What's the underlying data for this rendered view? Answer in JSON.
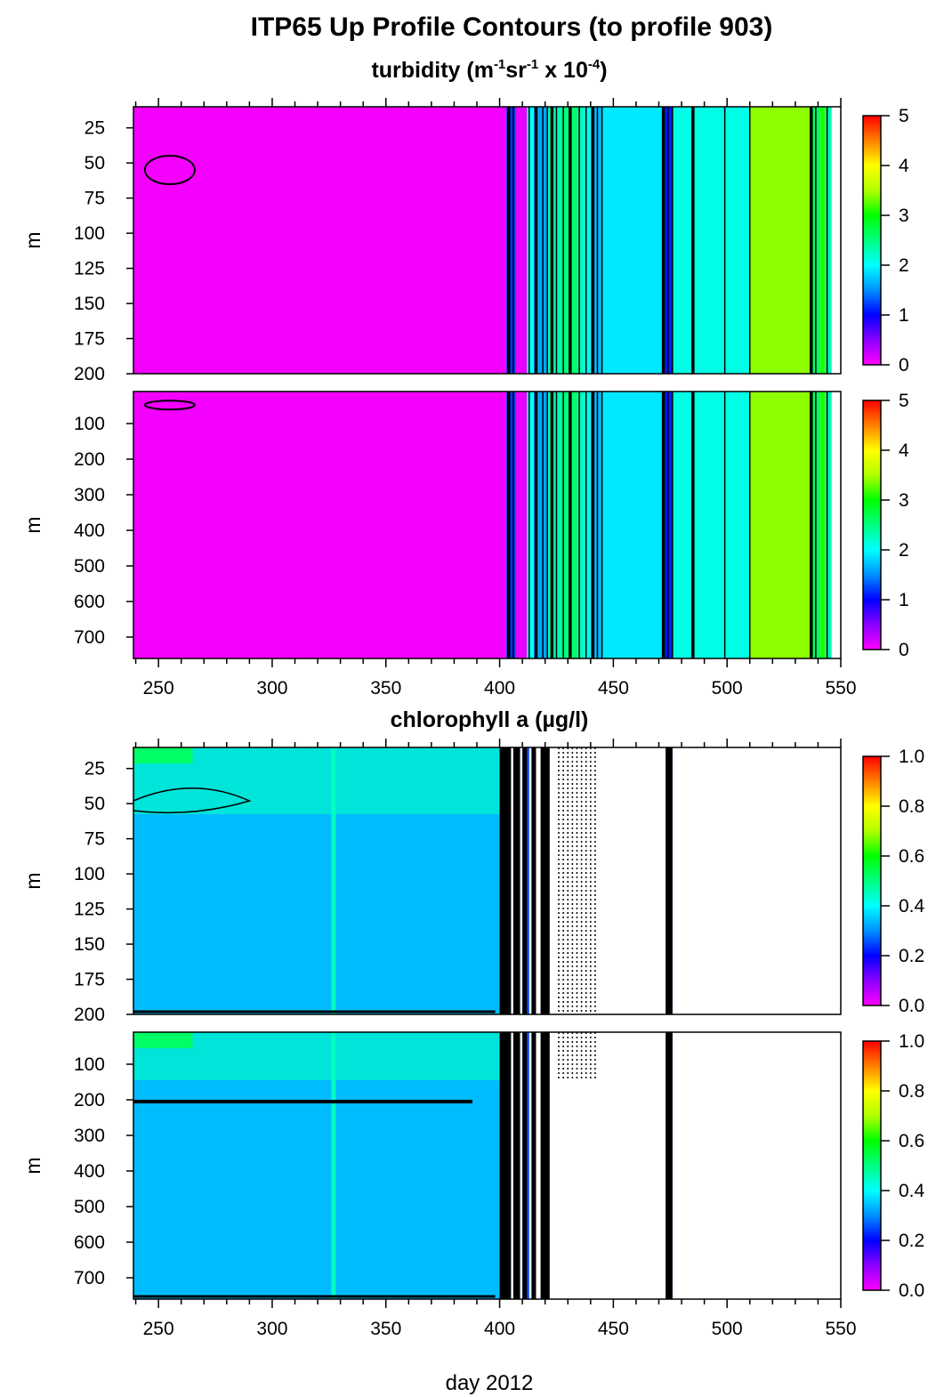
{
  "title": "ITP65 Up Profile Contours (to profile 903)",
  "chart_data": [
    {
      "type": "heatmap",
      "variable": "turbidity",
      "title_parts": {
        "base": "turbidity (m",
        "sup1": "-1",
        "mid1": "sr",
        "sup2": "-1",
        "mid2": " x 10",
        "sup3": "-4",
        "end": ")"
      },
      "xlabel": "",
      "x_ticks": [
        250,
        300,
        350,
        400,
        450,
        500,
        550
      ],
      "xlim": [
        239,
        550
      ],
      "colorbar": {
        "range": [
          0,
          5
        ],
        "ticks": [
          "0",
          "1",
          "2",
          "3",
          "4",
          "5"
        ]
      },
      "panels": [
        {
          "ylabel": "m",
          "ylim": [
            10,
            200
          ],
          "y_ticks": [
            25,
            50,
            75,
            100,
            125,
            150,
            175,
            200
          ]
        },
        {
          "ylabel": "m",
          "ylim": [
            10,
            760
          ],
          "y_ticks": [
            100,
            200,
            300,
            400,
            500,
            600,
            700
          ]
        }
      ],
      "data_end_day": 546,
      "bands": [
        {
          "x0": 239,
          "x1": 403,
          "value": 0.05
        },
        {
          "x0": 403,
          "x1": 407,
          "value": 1.2
        },
        {
          "x0": 407,
          "x1": 412,
          "value": 0.1
        },
        {
          "x0": 412,
          "x1": 415,
          "value": 2.0
        },
        {
          "x0": 415,
          "x1": 421,
          "value": 1.6
        },
        {
          "x0": 421,
          "x1": 427,
          "value": 2.3
        },
        {
          "x0": 427,
          "x1": 430,
          "value": 2.5
        },
        {
          "x0": 430,
          "x1": 434,
          "value": 2.6
        },
        {
          "x0": 434,
          "x1": 437,
          "value": 2.3
        },
        {
          "x0": 437,
          "x1": 440,
          "value": 2.1
        },
        {
          "x0": 440,
          "x1": 445,
          "value": 1.7
        },
        {
          "x0": 445,
          "x1": 472,
          "value": 1.9
        },
        {
          "x0": 472,
          "x1": 476,
          "value": 1.1
        },
        {
          "x0": 476,
          "x1": 510,
          "value": 2.1
        },
        {
          "x0": 510,
          "x1": 537,
          "value": 3.4
        },
        {
          "x0": 537,
          "x1": 541,
          "value": 2.6
        },
        {
          "x0": 541,
          "x1": 543,
          "value": 3.1
        },
        {
          "x0": 543,
          "x1": 546,
          "value": 2.3
        }
      ],
      "contour_days": [
        404,
        406,
        413,
        416,
        419,
        421,
        423,
        425,
        428,
        431,
        435,
        438,
        441,
        443,
        445,
        472,
        474,
        476,
        485,
        499,
        510,
        537,
        539,
        544
      ]
    },
    {
      "type": "heatmap",
      "variable": "chlorophyll a",
      "title": "chlorophyll a (µg/l)",
      "xlabel": "day 2012",
      "x_ticks": [
        250,
        300,
        350,
        400,
        450,
        500,
        550
      ],
      "xlim": [
        239,
        550
      ],
      "colorbar": {
        "range": [
          0.0,
          1.0
        ],
        "ticks": [
          "0.0",
          "0.2",
          "0.4",
          "0.6",
          "0.8",
          "1.0"
        ]
      },
      "panels": [
        {
          "ylabel": "m",
          "ylim": [
            10,
            200
          ],
          "y_ticks": [
            25,
            50,
            75,
            100,
            125,
            150,
            175,
            200
          ]
        },
        {
          "ylabel": "m",
          "ylim": [
            10,
            760
          ],
          "y_ticks": [
            100,
            200,
            300,
            400,
            500,
            600,
            700
          ]
        }
      ],
      "data_end_day": 400,
      "surface_value": 0.45,
      "deep_value": 0.34,
      "bands": [
        {
          "x0": 400,
          "x1": 405,
          "value": 0.3
        },
        {
          "x0": 410,
          "x1": 413,
          "value": 0.25
        },
        {
          "x0": 473,
          "x1": 476,
          "value": 0.05
        }
      ],
      "black_strips": [
        [
          400,
          405
        ],
        [
          406,
          409
        ],
        [
          410,
          412
        ],
        [
          414,
          416
        ],
        [
          418,
          422
        ],
        [
          473,
          476
        ]
      ],
      "dotted_days": [
        426,
        428,
        430,
        432,
        434,
        436,
        438,
        440,
        442
      ]
    }
  ]
}
